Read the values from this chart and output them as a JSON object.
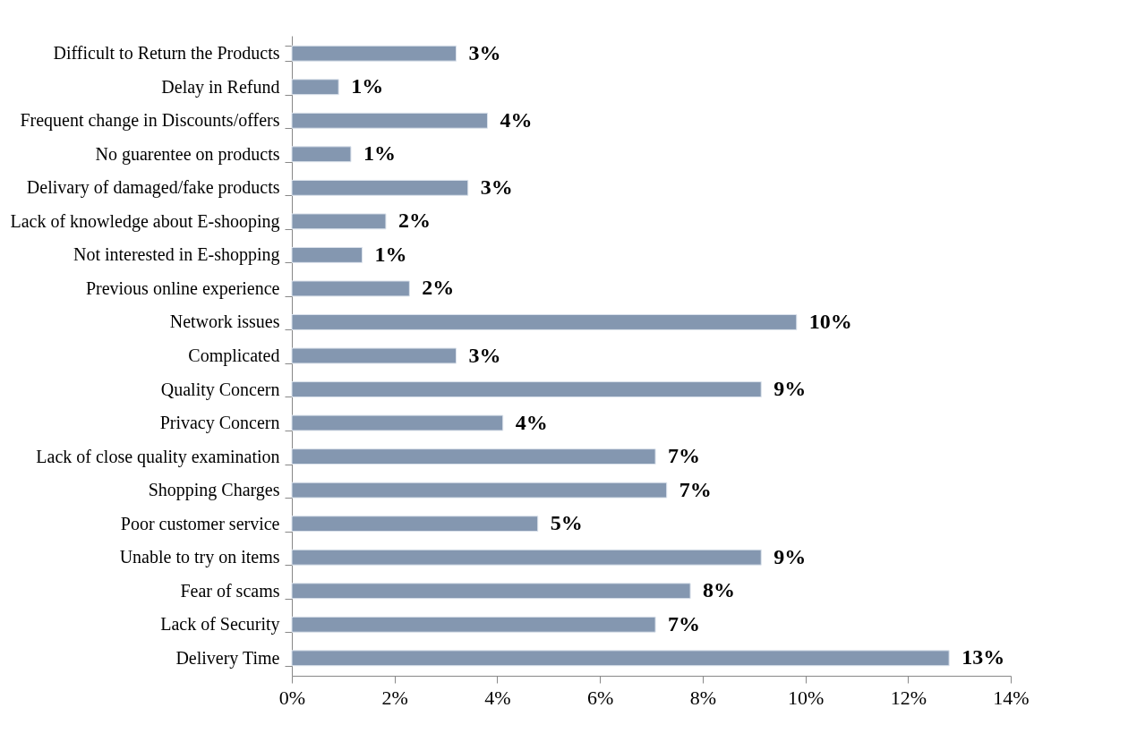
{
  "chart_data": {
    "type": "bar",
    "orientation": "horizontal",
    "categories": [
      "Difficult to Return the Products",
      "Delay in Refund",
      "Frequent change in Discounts/offers",
      "No guarentee on products",
      "Delivary of damaged/fake products",
      "Lack of knowledge about E-shooping",
      "Not interested in E-shopping",
      "Previous online experience",
      "Network issues",
      "Complicated",
      "Quality Concern",
      "Privacy Concern",
      "Lack of close quality examination",
      "Shopping Charges",
      "Poor customer service",
      "Unable to try on items",
      "Fear of scams",
      "Lack of Security",
      "Delivery Time"
    ],
    "values": [
      3.2,
      0.91,
      3.81,
      1.15,
      3.43,
      1.83,
      1.37,
      2.29,
      9.83,
      3.2,
      9.14,
      4.11,
      7.08,
      7.3,
      4.79,
      9.14,
      7.76,
      7.08,
      12.8
    ],
    "value_labels": [
      "3%",
      "1%",
      "4%",
      "1%",
      "3%",
      "2%",
      "1%",
      "2%",
      "10%",
      "3%",
      "9%",
      "4%",
      "7%",
      "7%",
      "5%",
      "9%",
      "8%",
      "7%",
      "13%"
    ],
    "color": "#8497b0",
    "xlim": [
      0,
      14
    ],
    "xticks": [
      {
        "value": 0,
        "label": "0%"
      },
      {
        "value": 2,
        "label": "2%"
      },
      {
        "value": 4,
        "label": "4%"
      },
      {
        "value": 6,
        "label": "6%"
      },
      {
        "value": 8,
        "label": "8%"
      },
      {
        "value": 10,
        "label": "10%"
      },
      {
        "value": 12,
        "label": "12%"
      },
      {
        "value": 14,
        "label": "14%"
      }
    ],
    "grid": false
  }
}
